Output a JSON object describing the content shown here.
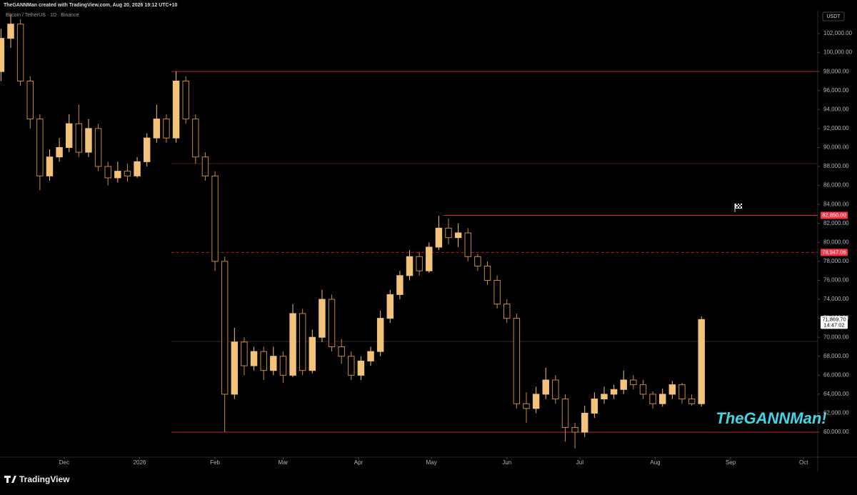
{
  "header": "TheGANNMan created with TradingView.com, Aug 20, 2026 19:12 UTC+10",
  "footer": "TradingView",
  "chart_data": {
    "type": "candlestick",
    "title": "Bitcoin / TetherUS · 1D · Binance",
    "currency": "USDT",
    "watermark": "TheGANNMan!",
    "up_color": "#f3c27b",
    "down_color": "#c9893a",
    "x": [
      -26,
      -22,
      -18,
      -14,
      -10,
      -6,
      -2,
      2,
      6,
      10,
      14,
      18,
      22,
      26,
      30,
      34,
      38,
      42,
      46,
      50,
      54,
      58,
      62,
      66,
      70,
      74,
      78,
      82,
      86,
      90,
      94,
      98,
      102,
      106,
      110,
      114,
      118,
      122,
      126,
      130,
      134,
      138,
      142,
      146,
      150,
      154,
      158,
      162,
      166,
      170,
      174,
      178,
      182,
      186,
      190,
      194,
      198,
      202,
      206,
      210,
      214,
      218,
      222,
      226,
      230,
      234,
      238,
      242,
      246,
      250,
      254,
      258,
      262
    ],
    "open": [
      98000,
      101500,
      103000,
      97000,
      93000,
      87000,
      89000,
      90000,
      92500,
      89500,
      92000,
      88000,
      86800,
      87500,
      87000,
      88500,
      91000,
      93000,
      91000,
      97000,
      93000,
      89000,
      87000,
      78000,
      64000,
      69500,
      67000,
      68500,
      66500,
      68000,
      66000,
      72500,
      66500,
      70000,
      74000,
      69000,
      68000,
      66000,
      67500,
      68500,
      72000,
      74500,
      76500,
      78500,
      77000,
      79500,
      81500,
      80500,
      81000,
      78500,
      77500,
      76000,
      73500,
      72000,
      63000,
      62500,
      64000,
      65500,
      63500,
      60500,
      60000,
      62000,
      63500,
      64000,
      64500,
      65500,
      65000,
      64000,
      63000,
      64000,
      65000,
      63500,
      63000
    ],
    "high": [
      102500,
      104000,
      103500,
      97500,
      93500,
      89800,
      91000,
      93500,
      94500,
      93000,
      92500,
      88500,
      88500,
      88300,
      89000,
      91500,
      94500,
      93500,
      98000,
      97500,
      93500,
      89500,
      87500,
      78500,
      71000,
      70000,
      69000,
      69000,
      69000,
      68500,
      73500,
      73000,
      70800,
      75000,
      74500,
      69800,
      68500,
      68000,
      69000,
      72800,
      75000,
      77000,
      79200,
      79000,
      80000,
      82800,
      82500,
      82000,
      81500,
      78800,
      78000,
      76500,
      74000,
      72500,
      64200,
      64800,
      66800,
      66000,
      64000,
      61000,
      62800,
      64200,
      64800,
      65000,
      66500,
      66000,
      65500,
      64300,
      64600,
      65400,
      65200,
      64000,
      72200
    ],
    "low": [
      97000,
      100500,
      96500,
      92000,
      85500,
      86500,
      88500,
      89500,
      89000,
      89000,
      87500,
      86000,
      86300,
      86400,
      86800,
      88000,
      90500,
      90500,
      90500,
      92500,
      88300,
      86500,
      77000,
      60000,
      63500,
      66000,
      66500,
      65500,
      66000,
      65200,
      65800,
      66000,
      66200,
      69500,
      68500,
      67200,
      65500,
      65500,
      67000,
      68000,
      71500,
      74000,
      76000,
      76500,
      76800,
      79200,
      79800,
      79500,
      78000,
      77000,
      75500,
      73000,
      71500,
      62500,
      61000,
      62000,
      63500,
      63000,
      59000,
      58300,
      59500,
      61500,
      63000,
      63500,
      64000,
      64500,
      63500,
      62500,
      62700,
      63500,
      63000,
      62800,
      62700
    ],
    "close": [
      101500,
      103000,
      97000,
      93000,
      87000,
      89000,
      90000,
      92500,
      89500,
      92000,
      88000,
      86800,
      87500,
      87000,
      88500,
      91000,
      93000,
      91000,
      97000,
      93000,
      89000,
      87000,
      78000,
      64000,
      69500,
      67000,
      68500,
      66500,
      68000,
      66000,
      72500,
      66500,
      70000,
      74000,
      69000,
      68000,
      66000,
      67500,
      68500,
      72000,
      74500,
      76500,
      78500,
      77000,
      79500,
      81500,
      80500,
      81000,
      78500,
      77500,
      76000,
      73500,
      72000,
      63000,
      62500,
      64000,
      65500,
      63500,
      60500,
      60000,
      62000,
      63500,
      64000,
      64500,
      65500,
      65000,
      64000,
      63000,
      64000,
      65000,
      63500,
      63000,
      71869.7
    ],
    "xlim": [
      -26.4,
      309.8
    ],
    "xticks": [
      {
        "value": 0,
        "label": "Dec"
      },
      {
        "value": 31,
        "label": "2026"
      },
      {
        "value": 62,
        "label": "Feb"
      },
      {
        "value": 90,
        "label": "Mar"
      },
      {
        "value": 121,
        "label": "Apr"
      },
      {
        "value": 151,
        "label": "May"
      },
      {
        "value": 182,
        "label": "Jun"
      },
      {
        "value": 212,
        "label": "Jul"
      },
      {
        "value": 243,
        "label": "Aug"
      },
      {
        "value": 274,
        "label": "Sep"
      },
      {
        "value": 304,
        "label": "Oct"
      }
    ],
    "ylim": [
      57370,
      104410
    ],
    "yticks": [
      {
        "value": 60000,
        "label": "60,000.00"
      },
      {
        "value": 62000,
        "label": "62,000.00"
      },
      {
        "value": 64000,
        "label": "64,000.00"
      },
      {
        "value": 66000,
        "label": "66,000.00"
      },
      {
        "value": 68000,
        "label": "68,000.00"
      },
      {
        "value": 70000,
        "label": "70,000.00"
      },
      {
        "value": 72000,
        "label": "72,000.00"
      },
      {
        "value": 74000,
        "label": "74,000.00"
      },
      {
        "value": 76000,
        "label": "76,000.00"
      },
      {
        "value": 78000,
        "label": "78,000.00"
      },
      {
        "value": 80000,
        "label": "80,000.00"
      },
      {
        "value": 82000,
        "label": "82,000.00"
      },
      {
        "value": 84000,
        "label": "84,000.00"
      },
      {
        "value": 86000,
        "label": "86,000.00"
      },
      {
        "value": 88000,
        "label": "88,000.00"
      },
      {
        "value": 90000,
        "label": "90,000.00"
      },
      {
        "value": 92000,
        "label": "92,000.00"
      },
      {
        "value": 94000,
        "label": "94,000.00"
      },
      {
        "value": 96000,
        "label": "96,000.00"
      },
      {
        "value": 98000,
        "label": "98,000.00"
      },
      {
        "value": 100000,
        "label": "100,000.00"
      },
      {
        "value": 102000,
        "label": "102,000.00"
      }
    ],
    "levels": [
      {
        "value": 98000,
        "from": 44,
        "color": "#c0262b",
        "style": "solid"
      },
      {
        "value": 88300,
        "from": 44,
        "color": "#5a1a1a",
        "style": "solid"
      },
      {
        "value": 82850,
        "from": 156,
        "color": "#d32f2f",
        "style": "solid"
      },
      {
        "value": 78947.06,
        "from": 44,
        "color": "#b71c1c",
        "style": "dashed"
      },
      {
        "value": 69560,
        "from": 44,
        "color": "#3a2626",
        "style": "solid"
      },
      {
        "value": 60000,
        "from": 44,
        "color": "#c0262b",
        "style": "solid"
      }
    ],
    "price_labels": [
      {
        "value": 82850,
        "label": "82,850.00",
        "color": "#f23645"
      },
      {
        "value": 78947.06,
        "label": "78,947.06",
        "color": "#f23645"
      },
      {
        "value": 71869.7,
        "label": "71,869.70",
        "sub": "14:47:02",
        "color": "#ffffff"
      }
    ]
  }
}
